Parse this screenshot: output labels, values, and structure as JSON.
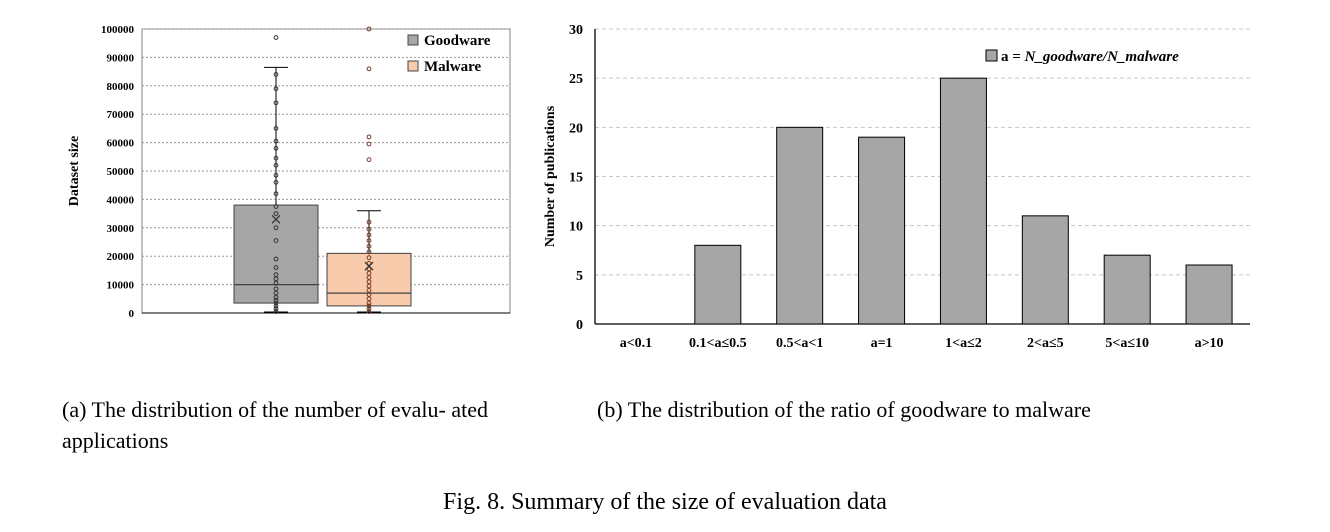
{
  "chart_data": [
    {
      "type": "box",
      "ylabel": "Dataset size",
      "yticks": [
        "0",
        "10000",
        "20000",
        "30000",
        "40000",
        "50000",
        "60000",
        "70000",
        "80000",
        "90000",
        "100000"
      ],
      "ylim": [
        0,
        100000
      ],
      "grid": true,
      "legend_position": "top-right",
      "series": [
        {
          "name": "Goodware",
          "color": "#a6a6a6",
          "whisker_low": 0,
          "q1": 3500,
          "median": 10000,
          "mean": 33000,
          "q3": 38000,
          "whisker_high": 86500,
          "points": [
            500,
            1500,
            2500,
            3500,
            4500,
            5500,
            7000,
            8500,
            10500,
            12000,
            13500,
            16000,
            19000,
            25500,
            30000,
            35000,
            37500,
            42000,
            46000,
            48500,
            52000,
            54500,
            58000,
            60500,
            65000,
            74000,
            79000,
            84000,
            97000
          ]
        },
        {
          "name": "Malware",
          "color": "#f8cbad",
          "whisker_low": 0,
          "q1": 2500,
          "median": 7000,
          "mean": 16500,
          "q3": 21000,
          "whisker_high": 36000,
          "points": [
            500,
            1500,
            2500,
            3500,
            5000,
            6500,
            8000,
            9500,
            11000,
            12500,
            14000,
            15500,
            17500,
            19500,
            21500,
            23500,
            25500,
            27500,
            29500,
            32000,
            54000,
            59500,
            62000,
            86000,
            100000
          ]
        }
      ]
    },
    {
      "type": "bar",
      "ylabel": "Number of publications",
      "categories": [
        "a<0.1",
        "0.1<a≤0.5",
        "0.5<a<1",
        "a=1",
        "1<a≤2",
        "2<a≤5",
        "5<a≤10",
        "a>10"
      ],
      "ylim": [
        0,
        30
      ],
      "yticks": [
        "0",
        "5",
        "10",
        "15",
        "20",
        "25",
        "30"
      ],
      "grid": true,
      "legend_position": "top-right",
      "legend_prefix": "a = ",
      "legend_formula": "N_goodware/N_malware",
      "series": [
        {
          "name": "a = N_goodware/N_malware",
          "color": "#a6a6a6",
          "values": [
            0,
            8,
            20,
            19,
            25,
            11,
            7,
            6
          ]
        }
      ]
    }
  ],
  "captions": {
    "a": "(a) The distribution of the number of evalu- ated applications",
    "b": "(b) The distribution of the ratio of goodware to malware",
    "figure": "Fig. 8. Summary of the size of evaluation data"
  }
}
